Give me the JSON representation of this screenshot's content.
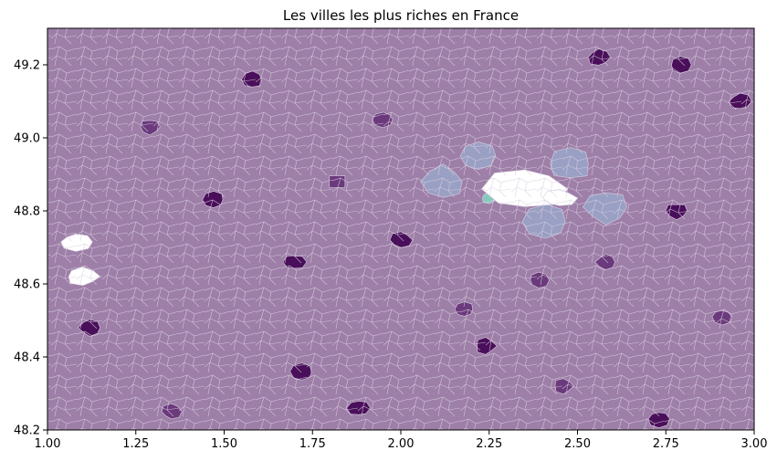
{
  "chart_data": {
    "type": "map",
    "title": "Les villes les plus riches en France",
    "xlim": [
      1.0,
      3.0
    ],
    "ylim": [
      48.2,
      49.3
    ],
    "xticks": [
      1.0,
      1.25,
      1.5,
      1.75,
      2.0,
      2.25,
      2.5,
      2.75,
      3.0
    ],
    "xtick_labels": [
      "1.00",
      "1.25",
      "1.50",
      "1.75",
      "2.00",
      "2.25",
      "2.50",
      "2.75",
      "3.00"
    ],
    "yticks": [
      48.2,
      48.4,
      48.6,
      48.8,
      49.0,
      49.2
    ],
    "ytick_labels": [
      "48.2",
      "48.4",
      "48.6",
      "48.8",
      "49.0",
      "49.2"
    ],
    "grid": false,
    "colors": {
      "base": "#9e7fa8",
      "dark": "#4a0f5a",
      "medium_dark": "#6b3a7c",
      "light_blue": "#9aa0c4",
      "teal": "#86c9bf",
      "border": "#d8cfe0",
      "missing": "#ffffff"
    },
    "highlighted_regions": [
      {
        "lon": 1.58,
        "lat": 49.16,
        "shade": "dark"
      },
      {
        "lon": 1.72,
        "lat": 48.36,
        "shade": "dark"
      },
      {
        "lon": 2.78,
        "lat": 48.8,
        "shade": "dark"
      },
      {
        "lon": 2.79,
        "lat": 49.2,
        "shade": "dark"
      },
      {
        "lon": 2.56,
        "lat": 49.22,
        "shade": "dark"
      },
      {
        "lon": 1.7,
        "lat": 48.66,
        "shade": "dark"
      },
      {
        "lon": 2.0,
        "lat": 48.72,
        "shade": "dark"
      },
      {
        "lon": 2.24,
        "lat": 48.43,
        "shade": "dark"
      },
      {
        "lon": 2.73,
        "lat": 48.23,
        "shade": "dark"
      },
      {
        "lon": 1.12,
        "lat": 48.48,
        "shade": "dark"
      },
      {
        "lon": 1.47,
        "lat": 48.83,
        "shade": "dark"
      },
      {
        "lon": 1.82,
        "lat": 48.88,
        "shade": "medium_dark"
      },
      {
        "lon": 2.18,
        "lat": 48.53,
        "shade": "medium_dark"
      },
      {
        "lon": 2.58,
        "lat": 48.66,
        "shade": "medium_dark"
      },
      {
        "lon": 2.91,
        "lat": 48.51,
        "shade": "medium_dark"
      },
      {
        "lon": 2.46,
        "lat": 48.32,
        "shade": "medium_dark"
      },
      {
        "lon": 1.35,
        "lat": 48.25,
        "shade": "medium_dark"
      },
      {
        "lon": 1.88,
        "lat": 48.26,
        "shade": "dark"
      },
      {
        "lon": 2.96,
        "lat": 49.1,
        "shade": "dark"
      },
      {
        "lon": 2.39,
        "lat": 48.61,
        "shade": "medium_dark"
      },
      {
        "lon": 1.29,
        "lat": 49.03,
        "shade": "medium_dark"
      },
      {
        "lon": 1.95,
        "lat": 49.05,
        "shade": "medium_dark"
      },
      {
        "lon": 2.12,
        "lat": 48.88,
        "shade": "light_blue"
      },
      {
        "lon": 2.22,
        "lat": 48.95,
        "shade": "light_blue"
      },
      {
        "lon": 2.48,
        "lat": 48.93,
        "shade": "light_blue"
      },
      {
        "lon": 2.41,
        "lat": 48.77,
        "shade": "light_blue"
      },
      {
        "lon": 2.58,
        "lat": 48.81,
        "shade": "light_blue"
      },
      {
        "lon": 2.28,
        "lat": 48.85,
        "shade": "teal"
      },
      {
        "lon": 2.25,
        "lat": 48.835,
        "shade": "teal"
      },
      {
        "lon": 2.35,
        "lat": 48.86,
        "shade": "missing"
      },
      {
        "lon": 2.45,
        "lat": 48.835,
        "shade": "missing"
      },
      {
        "lon": 1.1,
        "lat": 48.62,
        "shade": "missing"
      },
      {
        "lon": 1.08,
        "lat": 48.715,
        "shade": "missing"
      }
    ]
  }
}
